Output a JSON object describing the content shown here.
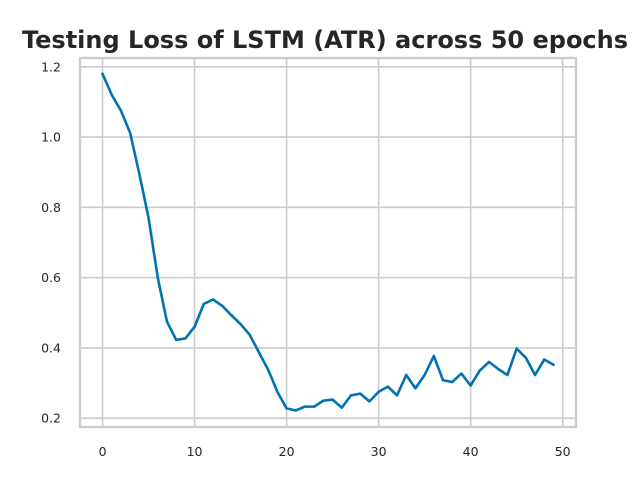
{
  "chart_data": {
    "type": "line",
    "title": "Testing Loss of LSTM (ATR) across 50 epochs",
    "xlabel": "",
    "ylabel": "",
    "xlim": [
      -2.45,
      51.45
    ],
    "ylim": [
      0.175,
      1.225
    ],
    "xticks": [
      0,
      10,
      20,
      30,
      40,
      50
    ],
    "yticks": [
      0.2,
      0.4,
      0.6,
      0.8,
      1.0,
      1.2
    ],
    "ytick_labels": [
      "0.2",
      "0.4",
      "0.6",
      "0.8",
      "1.0",
      "1.2"
    ],
    "grid": true,
    "legend": "none",
    "colors": {
      "line": "#0072b2",
      "grid": "#cccccc",
      "spine": "#cccccc",
      "text": "#262626",
      "background": "#ffffff"
    },
    "series": [
      {
        "x": [
          0,
          1,
          2,
          3,
          4,
          5,
          6,
          7,
          8,
          9,
          10,
          11,
          12,
          13,
          14,
          15,
          16,
          17,
          18,
          19,
          20,
          21,
          22,
          23,
          24,
          25,
          26,
          27,
          28,
          29,
          30,
          31,
          32,
          33,
          34,
          35,
          36,
          37,
          38,
          39,
          40,
          41,
          42,
          43,
          44,
          45,
          46,
          47,
          48,
          49
        ],
        "values": [
          1.18,
          1.12,
          1.075,
          1.012,
          0.895,
          0.77,
          0.6,
          0.475,
          0.423,
          0.427,
          0.46,
          0.525,
          0.538,
          0.52,
          0.493,
          0.468,
          0.437,
          0.387,
          0.338,
          0.275,
          0.228,
          0.222,
          0.233,
          0.233,
          0.25,
          0.253,
          0.23,
          0.265,
          0.27,
          0.248,
          0.275,
          0.29,
          0.265,
          0.323,
          0.285,
          0.323,
          0.377,
          0.308,
          0.303,
          0.327,
          0.293,
          0.336,
          0.36,
          0.34,
          0.323,
          0.398,
          0.372,
          0.323,
          0.367,
          0.352
        ]
      }
    ]
  }
}
